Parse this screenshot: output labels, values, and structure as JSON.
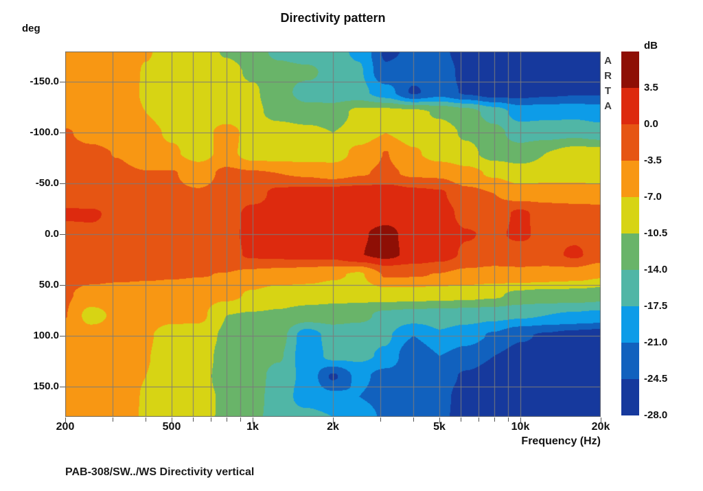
{
  "title": "Directivity pattern",
  "caption": "PAB-308/SW../WS  Directivity vertical",
  "watermark": "ARTA",
  "y_axis": {
    "label": "deg",
    "tick_labels": [
      "-150.0",
      "-100.0",
      "-50.0",
      "0.0",
      "50.0",
      "100.0",
      "150.0"
    ],
    "tick_angles": [
      -150,
      -100,
      -50,
      0,
      50,
      100,
      150
    ]
  },
  "x_axis": {
    "label": "Frequency (Hz)",
    "tick_labels": [
      "200",
      "500",
      "1k",
      "2k",
      "5k",
      "10k",
      "20k"
    ],
    "tick_freqs": [
      200,
      500,
      1000,
      2000,
      5000,
      10000,
      20000
    ]
  },
  "colorbar": {
    "label": "dB",
    "tick_labels": [
      "3.5",
      "0.0",
      "-3.5",
      "-7.0",
      "-10.5",
      "-14.0",
      "-17.5",
      "-21.0",
      "-24.5",
      "-28.0"
    ]
  },
  "chart_data": {
    "type": "heatmap",
    "title": "Directivity pattern",
    "xlabel": "Frequency (Hz)",
    "ylabel": "deg",
    "x_scale": "log",
    "xlim": [
      200,
      20000
    ],
    "ylim": [
      -180,
      180
    ],
    "grid": true,
    "grid_color": "#7b7b7b",
    "levels_db": [
      3.5,
      0.0,
      -3.5,
      -7.0,
      -10.5,
      -14.0,
      -17.5,
      -21.0,
      -24.5,
      -28.0
    ],
    "level_colors": [
      "#8e0f05",
      "#dd2a0e",
      "#e65513",
      "#f89713",
      "#d7d414",
      "#69b469",
      "#50b6a6",
      "#0d9ce8",
      "#1161be",
      "#16399d"
    ],
    "minor_grid_freqs": [
      300,
      400,
      500,
      600,
      700,
      800,
      900,
      1000,
      2000,
      3000,
      4000,
      5000,
      6000,
      7000,
      8000,
      9000,
      10000
    ],
    "major_tick_freqs": [
      200,
      500,
      1000,
      2000,
      5000,
      10000,
      20000
    ],
    "grid_angles": [
      -150,
      -100,
      -50,
      0,
      50,
      100,
      150
    ],
    "freqs_hz": [
      200,
      250,
      315,
      400,
      500,
      630,
      800,
      1000,
      1250,
      1600,
      2000,
      2500,
      3150,
      4000,
      5000,
      6300,
      8000,
      10000,
      12500,
      16000,
      20000
    ],
    "angles_deg": [
      -180,
      -160,
      -140,
      -120,
      -100,
      -80,
      -60,
      -40,
      -20,
      0,
      20,
      40,
      60,
      80,
      100,
      120,
      140,
      160,
      180
    ],
    "values_db": [
      [
        -5.0,
        -5.0,
        -5.2,
        -6.8,
        -8.0,
        -8.8,
        -10.8,
        -12.0,
        -15.0,
        -16.5,
        -16.5,
        -18.0,
        -25.0,
        -24.0,
        -23.5,
        -26.5,
        -27.0,
        -27.0,
        -27.0,
        -27.0,
        -27.0
      ],
      [
        -5.0,
        -5.0,
        -5.2,
        -7.2,
        -8.5,
        -9.0,
        -9.5,
        -11.0,
        -12.5,
        -13.0,
        -15.5,
        -17.0,
        -24.0,
        -23.0,
        -22.0,
        -26.0,
        -27.0,
        -27.0,
        -27.0,
        -27.0,
        -26.5
      ],
      [
        -5.0,
        -5.0,
        -5.3,
        -7.3,
        -8.6,
        -9.2,
        -9.3,
        -10.0,
        -12.5,
        -15.5,
        -15.8,
        -16.5,
        -19.5,
        -25.0,
        -22.5,
        -25.0,
        -26.5,
        -26.0,
        -25.5,
        -25.0,
        -25.0
      ],
      [
        -5.0,
        -5.0,
        -5.4,
        -7.0,
        -8.7,
        -9.3,
        -9.3,
        -9.8,
        -11.5,
        -12.5,
        -12.5,
        -9.5,
        -9.3,
        -9.5,
        -11.0,
        -12.5,
        -15.5,
        -19.0,
        -18.5,
        -18.5,
        -19.0
      ],
      [
        -3.3,
        -4.2,
        -4.8,
        -6.0,
        -7.5,
        -8.8,
        -5.5,
        -8.5,
        -9.0,
        -9.5,
        -10.5,
        -9.0,
        -7.0,
        -9.0,
        -9.0,
        -11.0,
        -13.0,
        -15.5,
        -15.5,
        -15.0,
        -16.0
      ],
      [
        -2.8,
        -3.0,
        -3.6,
        -5.0,
        -6.5,
        -8.5,
        -5.8,
        -8.8,
        -9.0,
        -9.3,
        -8.8,
        -6.0,
        -3.4,
        -6.5,
        -8.8,
        -9.5,
        -12.0,
        -12.5,
        -10.5,
        -9.0,
        -9.0
      ],
      [
        -2.5,
        -2.7,
        -3.0,
        -3.4,
        -3.3,
        -4.8,
        -2.8,
        -3.2,
        -3.5,
        -4.0,
        -4.8,
        -3.8,
        -3.0,
        -4.0,
        -4.2,
        -6.0,
        -7.5,
        -8.8,
        -8.8,
        -8.5,
        -9.0
      ],
      [
        -2.2,
        -2.4,
        -2.6,
        -2.8,
        -3.0,
        -3.2,
        -2.5,
        -1.5,
        1.0,
        1.5,
        1.8,
        2.0,
        2.2,
        1.0,
        0.5,
        -2.5,
        -3.5,
        -5.5,
        -4.8,
        -5.0,
        -5.2
      ],
      [
        0.5,
        0.5,
        -1.0,
        -1.5,
        -1.8,
        -1.5,
        -1.8,
        1.2,
        1.5,
        1.6,
        1.8,
        2.2,
        2.5,
        2.0,
        1.5,
        -1.0,
        -1.8,
        0.8,
        -1.8,
        -2.0,
        -2.2
      ],
      [
        -1.2,
        -0.8,
        -1.2,
        -1.5,
        -0.4,
        -0.3,
        -0.5,
        0.5,
        1.0,
        1.2,
        1.5,
        3.2,
        4.2,
        2.5,
        1.8,
        0.2,
        -0.5,
        0.6,
        -1.0,
        -0.8,
        -1.5
      ],
      [
        -1.8,
        -2.0,
        -2.2,
        -2.4,
        -2.2,
        -2.0,
        -1.0,
        0.5,
        0.8,
        1.0,
        1.2,
        3.4,
        4.4,
        2.6,
        1.5,
        -0.5,
        -1.2,
        -1.5,
        -1.2,
        0.6,
        -1.8
      ],
      [
        -2.5,
        -2.6,
        -2.8,
        -3.0,
        -3.2,
        -3.4,
        -3.6,
        -4.5,
        -5.0,
        -5.5,
        -6.5,
        -7.5,
        -3.2,
        -3.3,
        -3.6,
        -4.5,
        -5.0,
        -4.5,
        -5.0,
        -5.5,
        -6.5
      ],
      [
        -3.2,
        -4.5,
        -5.0,
        -5.2,
        -5.4,
        -5.6,
        -6.0,
        -7.5,
        -8.8,
        -9.0,
        -9.2,
        -9.3,
        -8.8,
        -9.0,
        -9.2,
        -9.5,
        -10.0,
        -11.5,
        -12.0,
        -12.0,
        -12.5
      ],
      [
        -3.4,
        -8.5,
        -6.0,
        -5.5,
        -5.8,
        -6.0,
        -10.5,
        -10.8,
        -11.0,
        -12.0,
        -12.5,
        -13.0,
        -15.0,
        -15.5,
        -15.8,
        -16.0,
        -16.5,
        -17.0,
        -17.5,
        -18.0,
        -18.5
      ],
      [
        -5.0,
        -5.0,
        -5.2,
        -6.5,
        -8.8,
        -9.0,
        -11.0,
        -11.5,
        -12.5,
        -19.5,
        -16.0,
        -16.5,
        -17.0,
        -21.0,
        -18.0,
        -19.5,
        -21.5,
        -24.0,
        -25.0,
        -26.0,
        -26.5
      ],
      [
        -5.2,
        -5.3,
        -5.5,
        -6.8,
        -9.0,
        -9.2,
        -11.5,
        -12.0,
        -13.5,
        -19.8,
        -16.5,
        -16.8,
        -18.0,
        -24.5,
        -21.0,
        -22.5,
        -24.5,
        -26.0,
        -26.5,
        -27.0,
        -27.0
      ],
      [
        -5.3,
        -5.4,
        -5.6,
        -7.0,
        -9.2,
        -9.4,
        -11.8,
        -12.2,
        -15.5,
        -18.5,
        -25.0,
        -20.0,
        -22.5,
        -23.5,
        -23.0,
        -25.0,
        -26.5,
        -27.0,
        -27.0,
        -27.0,
        -27.0
      ],
      [
        -5.3,
        -5.4,
        -5.6,
        -7.2,
        -9.3,
        -9.5,
        -11.0,
        -12.5,
        -15.8,
        -19.0,
        -20.0,
        -21.0,
        -23.0,
        -23.5,
        -23.5,
        -26.0,
        -27.0,
        -27.0,
        -27.0,
        -27.0,
        -27.0
      ],
      [
        -5.3,
        -5.4,
        -5.6,
        -7.3,
        -9.3,
        -9.6,
        -11.0,
        -12.8,
        -16.0,
        -16.5,
        -17.5,
        -18.0,
        -22.0,
        -23.0,
        -23.5,
        -26.5,
        -27.0,
        -27.0,
        -27.0,
        -27.0,
        -27.0
      ]
    ]
  }
}
